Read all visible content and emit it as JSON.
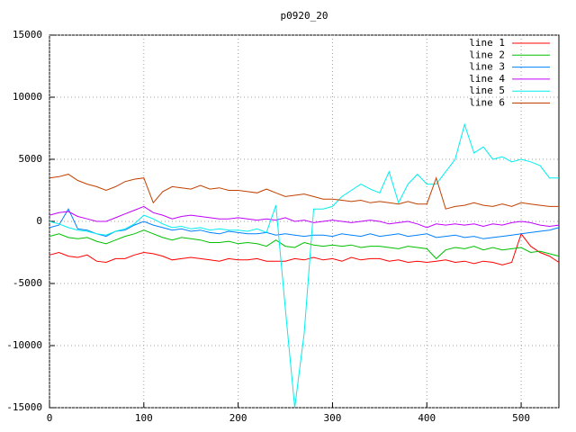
{
  "chart_data": {
    "type": "line",
    "title": "p0920_20",
    "x": [
      0,
      10,
      20,
      30,
      40,
      50,
      60,
      70,
      80,
      90,
      100,
      110,
      120,
      130,
      140,
      150,
      160,
      170,
      180,
      190,
      200,
      210,
      220,
      230,
      240,
      250,
      260,
      270,
      280,
      290,
      300,
      310,
      320,
      330,
      340,
      350,
      360,
      370,
      380,
      390,
      400,
      410,
      420,
      430,
      440,
      450,
      460,
      470,
      480,
      490,
      500,
      510,
      520,
      530,
      540
    ],
    "series": [
      {
        "name": "line 1",
        "color": "#ff0000",
        "values": [
          -2700,
          -2500,
          -2800,
          -2900,
          -2700,
          -3200,
          -3300,
          -3000,
          -3000,
          -2700,
          -2500,
          -2600,
          -2800,
          -3100,
          -3000,
          -2900,
          -3000,
          -3100,
          -3200,
          -3000,
          -3100,
          -3100,
          -3000,
          -3200,
          -3200,
          -3200,
          -3000,
          -3100,
          -2900,
          -3100,
          -3000,
          -3200,
          -2900,
          -3100,
          -3000,
          -3000,
          -3200,
          -3100,
          -3300,
          -3200,
          -3300,
          -3200,
          -3100,
          -3300,
          -3200,
          -3400,
          -3200,
          -3300,
          -3500,
          -3300,
          -1000,
          -2000,
          -2500,
          -2800,
          -3300
        ]
      },
      {
        "name": "line 2",
        "color": "#00c000",
        "values": [
          -1200,
          -1000,
          -1300,
          -1400,
          -1300,
          -1600,
          -1800,
          -1500,
          -1200,
          -1000,
          -700,
          -1000,
          -1300,
          -1500,
          -1300,
          -1400,
          -1500,
          -1700,
          -1700,
          -1600,
          -1800,
          -1700,
          -1800,
          -2000,
          -1500,
          -2000,
          -2100,
          -1700,
          -1900,
          -2000,
          -1900,
          -2000,
          -1900,
          -2100,
          -2000,
          -2000,
          -2100,
          -2200,
          -2000,
          -2100,
          -2200,
          -3000,
          -2300,
          -2100,
          -2200,
          -2000,
          -2300,
          -2100,
          -2300,
          -2200,
          -2100,
          -2500,
          -2400,
          -2600,
          -2800
        ]
      },
      {
        "name": "line 3",
        "color": "#0080ff",
        "values": [
          -500,
          -300,
          1000,
          -600,
          -700,
          -1000,
          -1200,
          -800,
          -700,
          -300,
          0,
          -300,
          -500,
          -700,
          -600,
          -800,
          -700,
          -900,
          -1000,
          -800,
          -900,
          -1000,
          -1000,
          -900,
          -1100,
          -1000,
          -1100,
          -1200,
          -1100,
          -1100,
          -1200,
          -1000,
          -1100,
          -1200,
          -1000,
          -1200,
          -1100,
          -1000,
          -1200,
          -1100,
          -1000,
          -1300,
          -1200,
          -1100,
          -1300,
          -1200,
          -1400,
          -1300,
          -1200,
          -1100,
          -1000,
          -900,
          -800,
          -700,
          -500
        ]
      },
      {
        "name": "line 4",
        "color": "#c000ff",
        "values": [
          500,
          700,
          800,
          400,
          200,
          0,
          0,
          300,
          600,
          900,
          1200,
          700,
          500,
          200,
          400,
          500,
          400,
          300,
          200,
          200,
          300,
          200,
          100,
          200,
          100,
          300,
          0,
          100,
          -100,
          0,
          100,
          0,
          -100,
          0,
          100,
          0,
          -200,
          -100,
          0,
          -200,
          -500,
          -200,
          -300,
          -200,
          -300,
          -200,
          -400,
          -200,
          -300,
          -100,
          0,
          -100,
          -300,
          -400,
          -300
        ]
      },
      {
        "name": "line 5",
        "color": "#00eeee",
        "values": [
          0,
          -200,
          -500,
          -700,
          -800,
          -1000,
          -1100,
          -800,
          -600,
          -200,
          500,
          200,
          -200,
          -500,
          -400,
          -600,
          -500,
          -700,
          -600,
          -700,
          -700,
          -800,
          -600,
          -900,
          1300,
          -7000,
          -15000,
          -9000,
          1000,
          1000,
          1200,
          2000,
          2500,
          3000,
          2600,
          2300,
          4000,
          1500,
          3000,
          3800,
          3000,
          3000,
          4000,
          5000,
          7800,
          5500,
          6000,
          5000,
          5200,
          4800,
          5000,
          4800,
          4500,
          3500,
          3500
        ]
      },
      {
        "name": "line 6",
        "color": "#c04000",
        "values": [
          3500,
          3600,
          3800,
          3300,
          3000,
          2800,
          2500,
          2800,
          3200,
          3400,
          3500,
          1500,
          2400,
          2800,
          2700,
          2600,
          2900,
          2600,
          2700,
          2500,
          2500,
          2400,
          2300,
          2600,
          2300,
          2000,
          2100,
          2200,
          2000,
          1800,
          1800,
          1700,
          1600,
          1700,
          1500,
          1600,
          1500,
          1400,
          1600,
          1400,
          1400,
          3500,
          1000,
          1200,
          1300,
          1500,
          1300,
          1200,
          1400,
          1200,
          1500,
          1400,
          1300,
          1200,
          1200
        ]
      }
    ],
    "xlim": [
      0,
      540
    ],
    "xticks": [
      0,
      100,
      200,
      300,
      400,
      500
    ],
    "ylim": [
      -15000,
      15000
    ],
    "yticks": [
      -15000,
      -10000,
      -5000,
      0,
      5000,
      10000,
      15000
    ],
    "grid": true,
    "legend": "top-right"
  }
}
